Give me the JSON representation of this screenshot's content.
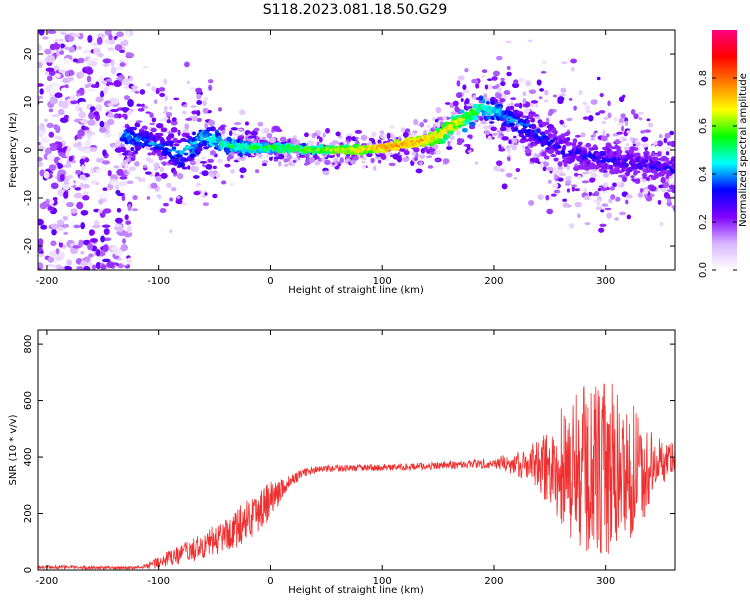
{
  "figure_title": "S118.2023.081.18.50.G29",
  "chart_data": [
    {
      "type": "heatmap",
      "title": "S118.2023.081.18.50.G29",
      "xlabel": "Height of straight line (km)",
      "ylabel": "Frequency (Hz)",
      "xlim": [
        -208,
        362
      ],
      "ylim": [
        -25,
        25
      ],
      "x_ticks": [
        -200,
        -100,
        0,
        100,
        200,
        300
      ],
      "y_ticks": [
        -20,
        -10,
        0,
        10,
        20
      ],
      "colorbar": {
        "label": "Normalized spectral amplitude",
        "range": [
          0,
          1
        ],
        "ticks": [
          0.0,
          0.2,
          0.4,
          0.6,
          0.8
        ],
        "tick_labels": [
          "0.0",
          "0.2",
          "0.4",
          "0.6",
          "0.8"
        ],
        "colors": [
          "#ffffff",
          "#d8b4ff",
          "#7f00ff",
          "#0000ff",
          "#00ffff",
          "#00ff00",
          "#ffff00",
          "#ff8000",
          "#ff0000",
          "#ff0080"
        ]
      },
      "ridge": {
        "description_x_km": [
          -130,
          -100,
          -80,
          -60,
          -40,
          -20,
          0,
          40,
          80,
          110,
          130,
          150,
          170,
          190,
          210,
          230,
          260,
          300,
          340,
          362
        ],
        "peak_frequency_hz": [
          3,
          1,
          -1,
          3,
          1,
          0.5,
          0.5,
          0,
          0,
          0.8,
          1.5,
          3,
          6,
          9,
          7,
          5,
          0,
          -2,
          -3,
          -4
        ],
        "peak_amplitude": [
          0.4,
          0.35,
          0.4,
          0.45,
          0.5,
          0.55,
          0.55,
          0.6,
          0.7,
          0.8,
          0.75,
          0.7,
          0.65,
          0.5,
          0.4,
          0.35,
          0.3,
          0.3,
          0.3,
          0.3
        ],
        "spread_hz": [
          4,
          4,
          5,
          4,
          2,
          1.5,
          1.2,
          1,
          1,
          1,
          1.5,
          2,
          2.5,
          3,
          4,
          5,
          5,
          4,
          3,
          3
        ]
      },
      "noise_region_x_km": [
        -208,
        -125
      ]
    },
    {
      "type": "line",
      "xlabel": "Height of straight line (km)",
      "ylabel": "SNR (10 * v/v)",
      "xlim": [
        -208,
        362
      ],
      "ylim": [
        0,
        850
      ],
      "x_ticks": [
        -200,
        -100,
        0,
        100,
        200,
        300
      ],
      "y_ticks": [
        0,
        200,
        400,
        600,
        800
      ],
      "series": [
        {
          "color": "#f03030",
          "x": [
            -208,
            -180,
            -150,
            -120,
            -110,
            -100,
            -90,
            -80,
            -70,
            -60,
            -50,
            -40,
            -30,
            -20,
            -10,
            0,
            10,
            20,
            30,
            40,
            60,
            80,
            100,
            120,
            140,
            160,
            180,
            200,
            220,
            240,
            250,
            260,
            270,
            280,
            290,
            300,
            310,
            320,
            330,
            340,
            350,
            362
          ],
          "y": [
            10,
            10,
            8,
            8,
            15,
            30,
            40,
            55,
            70,
            85,
            105,
            125,
            150,
            180,
            215,
            250,
            285,
            320,
            345,
            355,
            360,
            362,
            362,
            365,
            368,
            372,
            375,
            380,
            375,
            370,
            365,
            360,
            355,
            350,
            350,
            345,
            350,
            355,
            350,
            360,
            380,
            400
          ],
          "envelope_amplitude": [
            6,
            6,
            5,
            5,
            10,
            25,
            30,
            35,
            40,
            45,
            55,
            60,
            70,
            75,
            75,
            70,
            40,
            20,
            15,
            12,
            12,
            12,
            12,
            12,
            12,
            14,
            16,
            20,
            40,
            90,
            150,
            230,
            270,
            300,
            330,
            330,
            300,
            260,
            200,
            140,
            80,
            50
          ]
        }
      ]
    }
  ]
}
